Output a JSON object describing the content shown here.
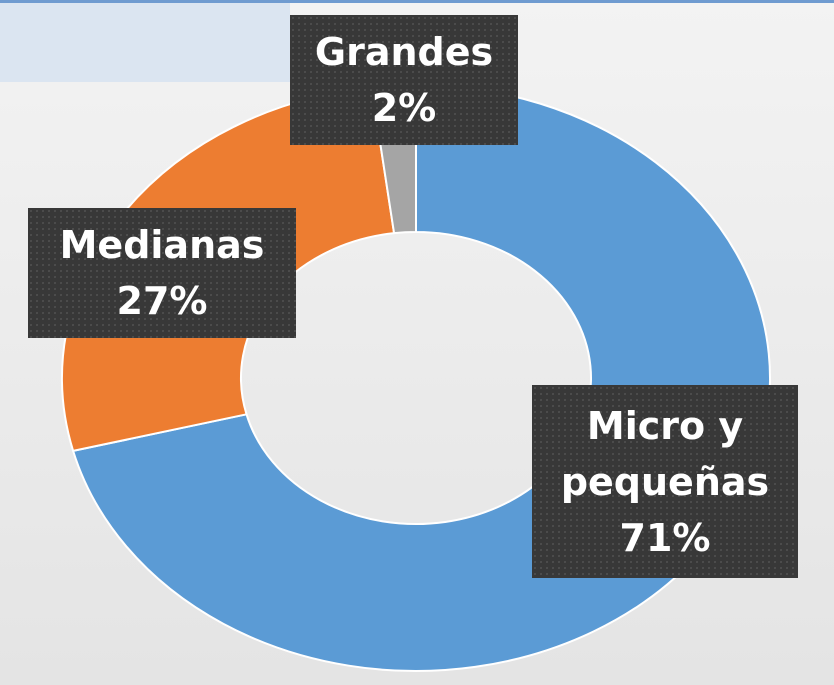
{
  "chart_data": {
    "type": "donut",
    "categories": [
      "Micro y pequeñas",
      "Medianas",
      "Grandes"
    ],
    "values": [
      71,
      27,
      2
    ],
    "value_labels": [
      "71%",
      "27%",
      "2%"
    ],
    "colors": [
      "#5b9bd5",
      "#ed7d31",
      "#a5a5a5"
    ]
  }
}
